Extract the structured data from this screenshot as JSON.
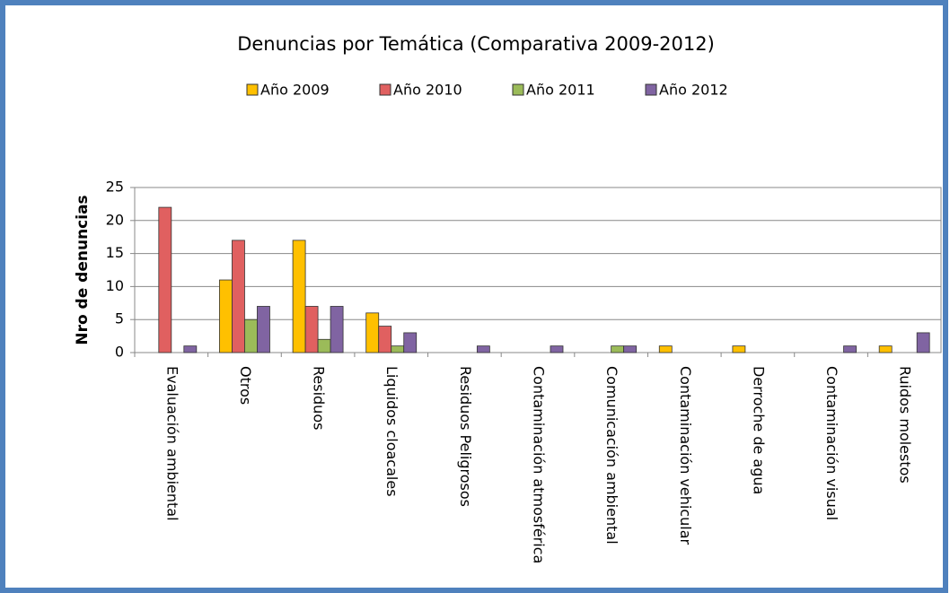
{
  "chart_data": {
    "type": "bar",
    "title": "Denuncias por Temática  (Comparativa 2009-2012)",
    "y_label": "Nro de denuncias",
    "categories": [
      "Evaluación ambiental",
      "Otros",
      "Residuos",
      "Liquidos cloacales",
      "Residuos Peligrosos",
      "Contaminación atmosférica",
      "Comunicación ambiental",
      "Contaminación vehicular",
      "Derroche de agua",
      "Contaminación visual",
      "Ruidos molestos"
    ],
    "series": [
      {
        "name": "Año 2009",
        "color": "#FFC000",
        "values": [
          0,
          11,
          17,
          6,
          0,
          0,
          0,
          1,
          1,
          0,
          1
        ]
      },
      {
        "name": "Año 2010",
        "color": "#E06060",
        "values": [
          22,
          17,
          7,
          4,
          0,
          0,
          0,
          0,
          0,
          0,
          0
        ]
      },
      {
        "name": "Año 2011",
        "color": "#9BBB59",
        "values": [
          0,
          5,
          2,
          1,
          0,
          0,
          1,
          0,
          0,
          0,
          0
        ]
      },
      {
        "name": "Año 2012",
        "color": "#8064A2",
        "values": [
          1,
          7,
          7,
          3,
          1,
          1,
          1,
          0,
          0,
          1,
          3
        ]
      }
    ],
    "ylim": [
      0,
      25
    ],
    "yticks": [
      0,
      5,
      10,
      15,
      20,
      25
    ],
    "grid": true,
    "legend": "top"
  }
}
